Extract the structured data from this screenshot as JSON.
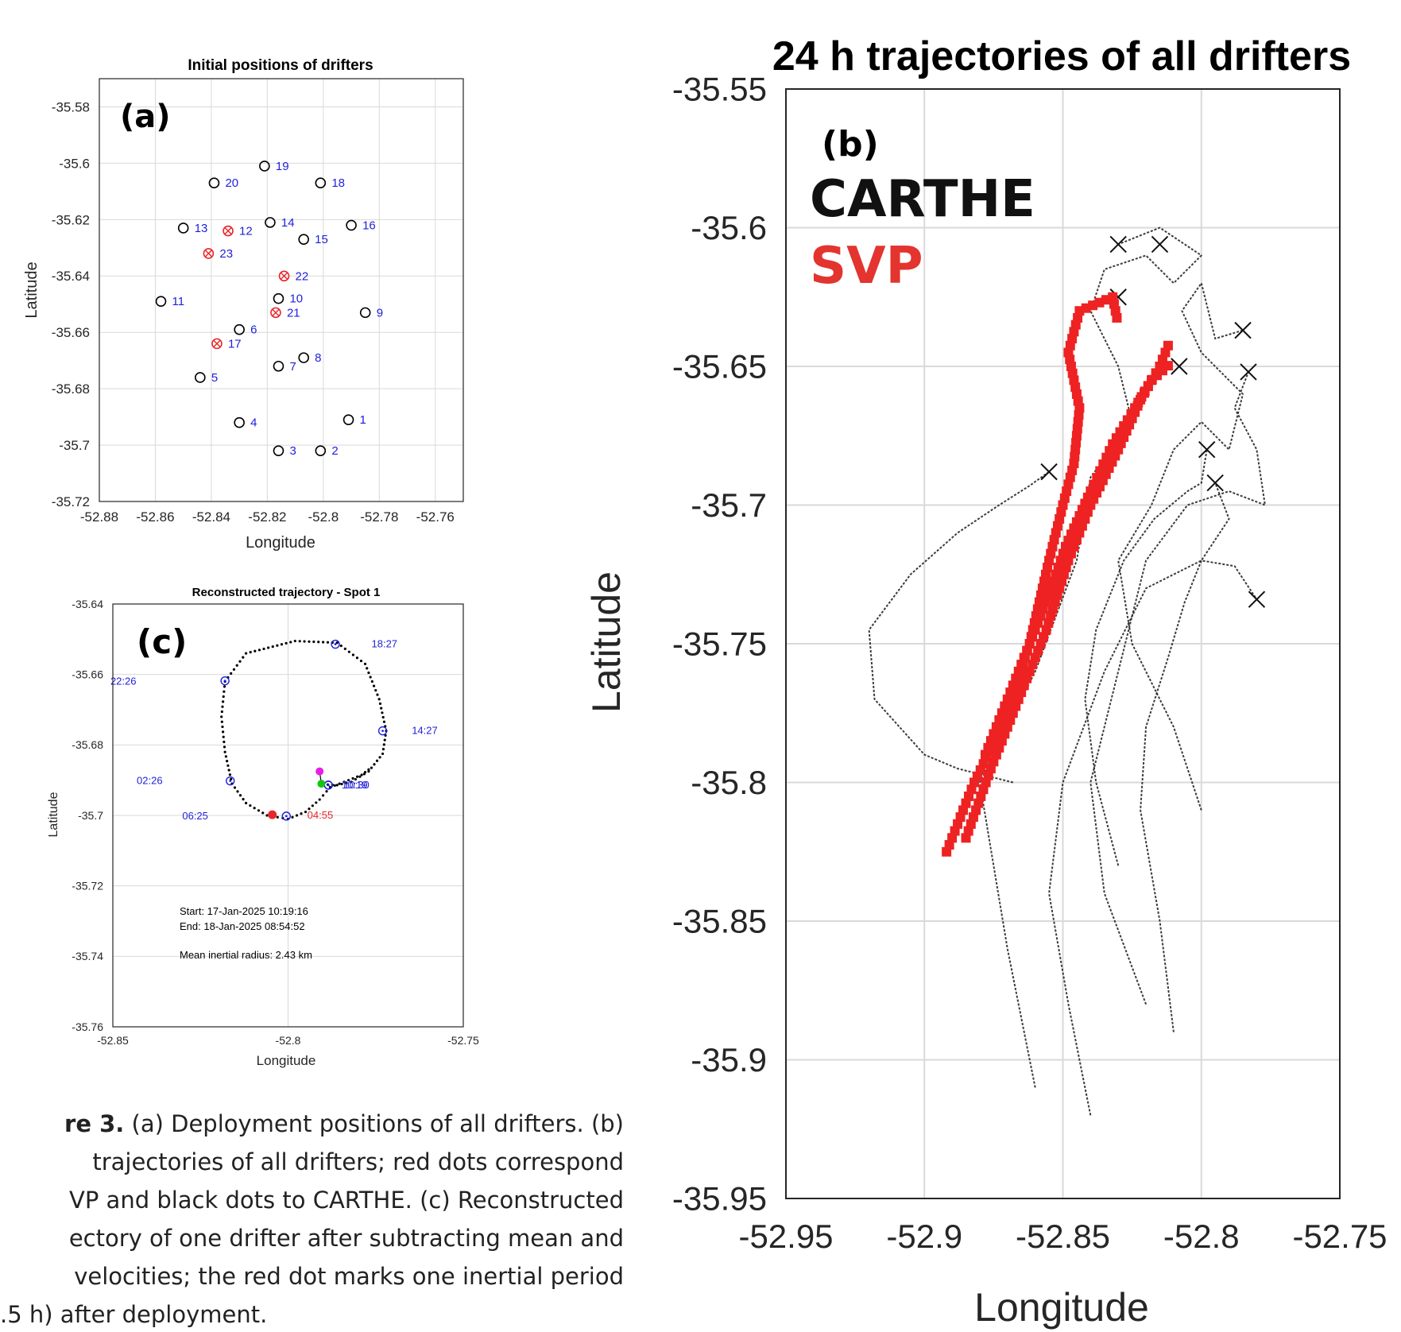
{
  "figure_caption": {
    "label": "re 3.",
    "lines": [
      "(a) Deployment positions of all drifters. (b)",
      "trajectories of all drifters; red dots correspond",
      "VP and black dots to CARTHE. (c) Reconstructed",
      "ectory of one drifter after subtracting mean and",
      "velocities; the red dot marks one inertial period",
      ".5 h) after deployment."
    ]
  },
  "chart_data": [
    {
      "panel": "(a)",
      "type": "scatter",
      "title": "Initial positions of drifters",
      "xlabel": "Longitude",
      "ylabel": "Latitude",
      "xlim": [
        -52.88,
        -52.75
      ],
      "ylim": [
        -35.72,
        -35.57
      ],
      "xticks": [
        "-52.88",
        "-52.86",
        "-52.84",
        "-52.82",
        "-52.8",
        "-52.78",
        "-52.76"
      ],
      "xtick_values": [
        -52.88,
        -52.86,
        -52.84,
        -52.82,
        -52.8,
        -52.78,
        -52.76
      ],
      "yticks": [
        "-35.58",
        "-35.6",
        "-35.62",
        "-35.64",
        "-35.66",
        "-35.68",
        "-35.7",
        "-35.72"
      ],
      "ytick_values": [
        -35.58,
        -35.6,
        -35.62,
        -35.64,
        -35.66,
        -35.68,
        -35.7,
        -35.72
      ],
      "grid": true,
      "colors": {
        "carthe": "#000000",
        "svp": "#e8262b",
        "label": "#1f1fdc"
      },
      "points": [
        {
          "id": "1",
          "lon": -52.791,
          "lat": -35.691,
          "kind": "carthe"
        },
        {
          "id": "2",
          "lon": -52.801,
          "lat": -35.702,
          "kind": "carthe"
        },
        {
          "id": "3",
          "lon": -52.816,
          "lat": -35.702,
          "kind": "carthe"
        },
        {
          "id": "4",
          "lon": -52.83,
          "lat": -35.692,
          "kind": "carthe"
        },
        {
          "id": "5",
          "lon": -52.844,
          "lat": -35.676,
          "kind": "carthe"
        },
        {
          "id": "6",
          "lon": -52.83,
          "lat": -35.659,
          "kind": "carthe"
        },
        {
          "id": "7",
          "lon": -52.816,
          "lat": -35.672,
          "kind": "carthe"
        },
        {
          "id": "8",
          "lon": -52.807,
          "lat": -35.669,
          "kind": "carthe"
        },
        {
          "id": "9",
          "lon": -52.785,
          "lat": -35.653,
          "kind": "carthe"
        },
        {
          "id": "10",
          "lon": -52.816,
          "lat": -35.648,
          "kind": "carthe"
        },
        {
          "id": "11",
          "lon": -52.858,
          "lat": -35.649,
          "kind": "carthe"
        },
        {
          "id": "12",
          "lon": -52.834,
          "lat": -35.624,
          "kind": "svp"
        },
        {
          "id": "13",
          "lon": -52.85,
          "lat": -35.623,
          "kind": "carthe"
        },
        {
          "id": "14",
          "lon": -52.819,
          "lat": -35.621,
          "kind": "carthe"
        },
        {
          "id": "15",
          "lon": -52.807,
          "lat": -35.627,
          "kind": "carthe"
        },
        {
          "id": "16",
          "lon": -52.79,
          "lat": -35.622,
          "kind": "carthe"
        },
        {
          "id": "17",
          "lon": -52.838,
          "lat": -35.664,
          "kind": "svp"
        },
        {
          "id": "18",
          "lon": -52.801,
          "lat": -35.607,
          "kind": "carthe"
        },
        {
          "id": "19",
          "lon": -52.821,
          "lat": -35.601,
          "kind": "carthe"
        },
        {
          "id": "20",
          "lon": -52.839,
          "lat": -35.607,
          "kind": "carthe"
        },
        {
          "id": "21",
          "lon": -52.817,
          "lat": -35.653,
          "kind": "svp"
        },
        {
          "id": "22",
          "lon": -52.814,
          "lat": -35.64,
          "kind": "svp"
        },
        {
          "id": "23",
          "lon": -52.841,
          "lat": -35.632,
          "kind": "svp"
        }
      ]
    },
    {
      "panel": "(b)",
      "type": "line",
      "title": "24 h trajectories of all drifters",
      "xlabel": "Longitude",
      "ylabel": "Latitude",
      "xlim": [
        -52.95,
        -52.75
      ],
      "ylim": [
        -35.95,
        -35.55
      ],
      "xticks": [
        "-52.95",
        "-52.9",
        "-52.85",
        "-52.8",
        "-52.75"
      ],
      "xtick_values": [
        -52.95,
        -52.9,
        -52.85,
        -52.8,
        -52.75
      ],
      "yticks": [
        "-35.55",
        "-35.6",
        "-35.65",
        "-35.7",
        "-35.75",
        "-35.8",
        "-35.85",
        "-35.9",
        "-35.95"
      ],
      "ytick_values": [
        -35.55,
        -35.6,
        -35.65,
        -35.7,
        -35.75,
        -35.8,
        -35.85,
        -35.9,
        -35.95
      ],
      "grid": true,
      "legend": [
        {
          "label": "CARTHE",
          "color": "#111111"
        },
        {
          "label": "SVP",
          "color": "#e3342f"
        }
      ],
      "svp_series": [
        {
          "name": "",
          "x": [
            -52.892,
            -52.882,
            -52.872,
            -52.862,
            -52.855,
            -52.85,
            -52.846,
            -52.844,
            -52.848,
            -52.844,
            -52.832,
            -52.83
          ],
          "y": [
            -35.825,
            -35.8,
            -35.78,
            -35.75,
            -35.72,
            -35.7,
            -35.685,
            -35.665,
            -35.645,
            -35.63,
            -35.625,
            -35.635
          ]
        },
        {
          "name": "",
          "x": [
            -52.885,
            -52.876,
            -52.866,
            -52.856,
            -52.848,
            -52.84,
            -52.83,
            -52.822,
            -52.815,
            -52.811
          ],
          "y": [
            -35.82,
            -35.795,
            -35.77,
            -35.745,
            -35.72,
            -35.7,
            -35.68,
            -35.662,
            -35.65,
            -35.64
          ]
        },
        {
          "name": "",
          "x": [
            -52.878,
            -52.868,
            -52.858,
            -52.849,
            -52.84,
            -52.832,
            -52.824,
            -52.818,
            -52.81
          ],
          "y": [
            -35.79,
            -35.765,
            -35.74,
            -35.715,
            -35.695,
            -35.678,
            -35.665,
            -35.655,
            -35.648
          ]
        }
      ],
      "carthe_series": [
        {
          "name": "",
          "x": [
            -52.86,
            -52.87,
            -52.88,
            -52.86,
            -52.845,
            -52.84,
            -52.825,
            -52.83,
            -52.84,
            -52.835,
            -52.82,
            -52.81,
            -52.8,
            -52.815,
            -52.83
          ],
          "y": [
            -35.91,
            -35.86,
            -35.8,
            -35.76,
            -35.72,
            -35.69,
            -35.67,
            -35.65,
            -35.63,
            -35.615,
            -35.61,
            -35.62,
            -35.61,
            -35.6,
            -35.606
          ]
        },
        {
          "name": "",
          "x": [
            -52.8,
            -52.81,
            -52.825,
            -52.83,
            -52.818,
            -52.81,
            -52.8,
            -52.79,
            -52.785,
            -52.8,
            -52.807,
            -52.8,
            -52.795,
            -52.785
          ],
          "y": [
            -35.81,
            -35.78,
            -35.75,
            -35.72,
            -35.7,
            -35.68,
            -35.67,
            -35.68,
            -35.66,
            -35.645,
            -35.63,
            -35.62,
            -35.64,
            -35.637
          ]
        },
        {
          "name": "",
          "x": [
            -52.82,
            -52.835,
            -52.84,
            -52.83,
            -52.82,
            -52.805,
            -52.79,
            -52.777,
            -52.78,
            -52.788,
            -52.783
          ],
          "y": [
            -35.88,
            -35.84,
            -35.8,
            -35.76,
            -35.72,
            -35.7,
            -35.695,
            -35.7,
            -35.68,
            -35.665,
            -35.652
          ]
        },
        {
          "name": "",
          "x": [
            -52.868,
            -52.888,
            -52.9,
            -52.918,
            -52.92,
            -52.905,
            -52.888,
            -52.873,
            -52.862,
            -52.855
          ],
          "y": [
            -35.8,
            -35.795,
            -35.79,
            -35.77,
            -35.745,
            -35.725,
            -35.71,
            -35.7,
            -35.693,
            -35.688
          ]
        },
        {
          "name": "",
          "x": [
            -52.84,
            -52.848,
            -52.855,
            -52.85,
            -52.835,
            -52.82,
            -52.8,
            -52.79,
            -52.795
          ],
          "y": [
            -35.92,
            -35.88,
            -35.84,
            -35.8,
            -35.76,
            -35.73,
            -35.72,
            -35.705,
            -35.692
          ]
        },
        {
          "name": "",
          "x": [
            -52.81,
            -52.815,
            -52.822,
            -52.82,
            -52.812,
            -52.806,
            -52.8,
            -52.788,
            -52.78
          ],
          "y": [
            -35.89,
            -35.85,
            -35.81,
            -35.78,
            -35.755,
            -35.735,
            -35.72,
            -35.722,
            -35.734
          ]
        },
        {
          "name": "",
          "x": [
            -52.83,
            -52.838,
            -52.842,
            -52.838,
            -52.828,
            -52.817,
            -52.805,
            -52.8,
            -52.798
          ],
          "y": [
            -35.83,
            -35.8,
            -35.77,
            -35.745,
            -35.72,
            -35.705,
            -35.695,
            -35.692,
            -35.68
          ]
        }
      ],
      "end_markers": [
        {
          "lon": -52.83,
          "lat": -35.606
        },
        {
          "lon": -52.815,
          "lat": -35.606
        },
        {
          "lon": -52.785,
          "lat": -35.637
        },
        {
          "lon": -52.783,
          "lat": -35.652
        },
        {
          "lon": -52.795,
          "lat": -35.692
        },
        {
          "lon": -52.78,
          "lat": -35.734
        },
        {
          "lon": -52.798,
          "lat": -35.68
        },
        {
          "lon": -52.855,
          "lat": -35.688
        },
        {
          "lon": -52.83,
          "lat": -35.625
        },
        {
          "lon": -52.808,
          "lat": -35.65
        }
      ]
    },
    {
      "panel": "(c)",
      "type": "line",
      "title": "Reconstructed trajectory - Spot 1",
      "xlabel": "Longitude",
      "ylabel": "Latitude",
      "xlim": [
        -52.85,
        -52.75
      ],
      "ylim": [
        -35.76,
        -35.64
      ],
      "xticks": [
        "-52.85",
        "-52.8",
        "-52.75"
      ],
      "xtick_values": [
        -52.85,
        -52.8,
        -52.75
      ],
      "yticks": [
        "-35.64",
        "-35.66",
        "-35.68",
        "-35.7",
        "-35.72",
        "-35.74",
        "-35.76"
      ],
      "ytick_values": [
        -35.64,
        -35.66,
        -35.68,
        -35.7,
        -35.72,
        -35.74,
        -35.76
      ],
      "grid": true,
      "colors": {
        "track": "#000000",
        "marker": "#1f1fdc",
        "start": "#11c611",
        "end": "#e81ee8",
        "inertial": "#e8262b"
      },
      "track": {
        "x": [
          -52.79,
          -52.786,
          -52.782,
          -52.777,
          -52.773,
          -52.772,
          -52.774,
          -52.778,
          -52.786,
          -52.798,
          -52.812,
          -52.818,
          -52.819,
          -52.818,
          -52.816,
          -52.812,
          -52.806,
          -52.8,
          -52.795,
          -52.791,
          -52.788,
          -52.784,
          -52.779,
          -52.776
        ],
        "y": [
          -35.6912,
          -35.6914,
          -35.6905,
          -35.6875,
          -35.6825,
          -35.676,
          -35.667,
          -35.657,
          -35.651,
          -35.6505,
          -35.654,
          -35.662,
          -35.672,
          -35.682,
          -35.691,
          -35.6965,
          -35.7,
          -35.701,
          -35.699,
          -35.6955,
          -35.692,
          -35.6905,
          -35.6885,
          -35.6862
        ]
      },
      "markers": [
        {
          "lon": -52.7865,
          "lat": -35.6514,
          "label": "18:27",
          "label_lon": -52.7725,
          "label_lat": -35.6514
        },
        {
          "lon": -52.818,
          "lat": -35.6618,
          "label": "22:26",
          "label_lon": -52.847,
          "label_lat": -35.662
        },
        {
          "lon": -52.773,
          "lat": -35.676,
          "label": "14:27",
          "label_lon": -52.761,
          "label_lat": -35.676
        },
        {
          "lon": -52.8165,
          "lat": -35.6902,
          "label": "02:26",
          "label_lon": -52.8395,
          "label_lat": -35.6902
        },
        {
          "lon": -52.8005,
          "lat": -35.7002,
          "label": "06:25",
          "label_lon": -52.8265,
          "label_lat": -35.7002
        },
        {
          "lon": -52.7885,
          "lat": -35.6914,
          "label": "10:19",
          "label_lon": -52.781,
          "label_lat": -35.6914
        },
        {
          "lon": -52.7885,
          "lat": -35.6914,
          "label": "10:30",
          "label_lon": -52.7805,
          "label_lat": -35.6914
        }
      ],
      "start_point": {
        "lon": -52.7905,
        "lat": -35.691
      },
      "end_point": {
        "lon": -52.791,
        "lat": -35.6875
      },
      "inertial_point": {
        "lon": -52.8045,
        "lat": -35.6998,
        "label": "04:55"
      },
      "annotations": {
        "start": "Start: 17-Jan-2025 10:19:16",
        "end": "End: 18-Jan-2025 08:54:52",
        "radius": "Mean inertial radius: 2.43 km"
      }
    }
  ]
}
